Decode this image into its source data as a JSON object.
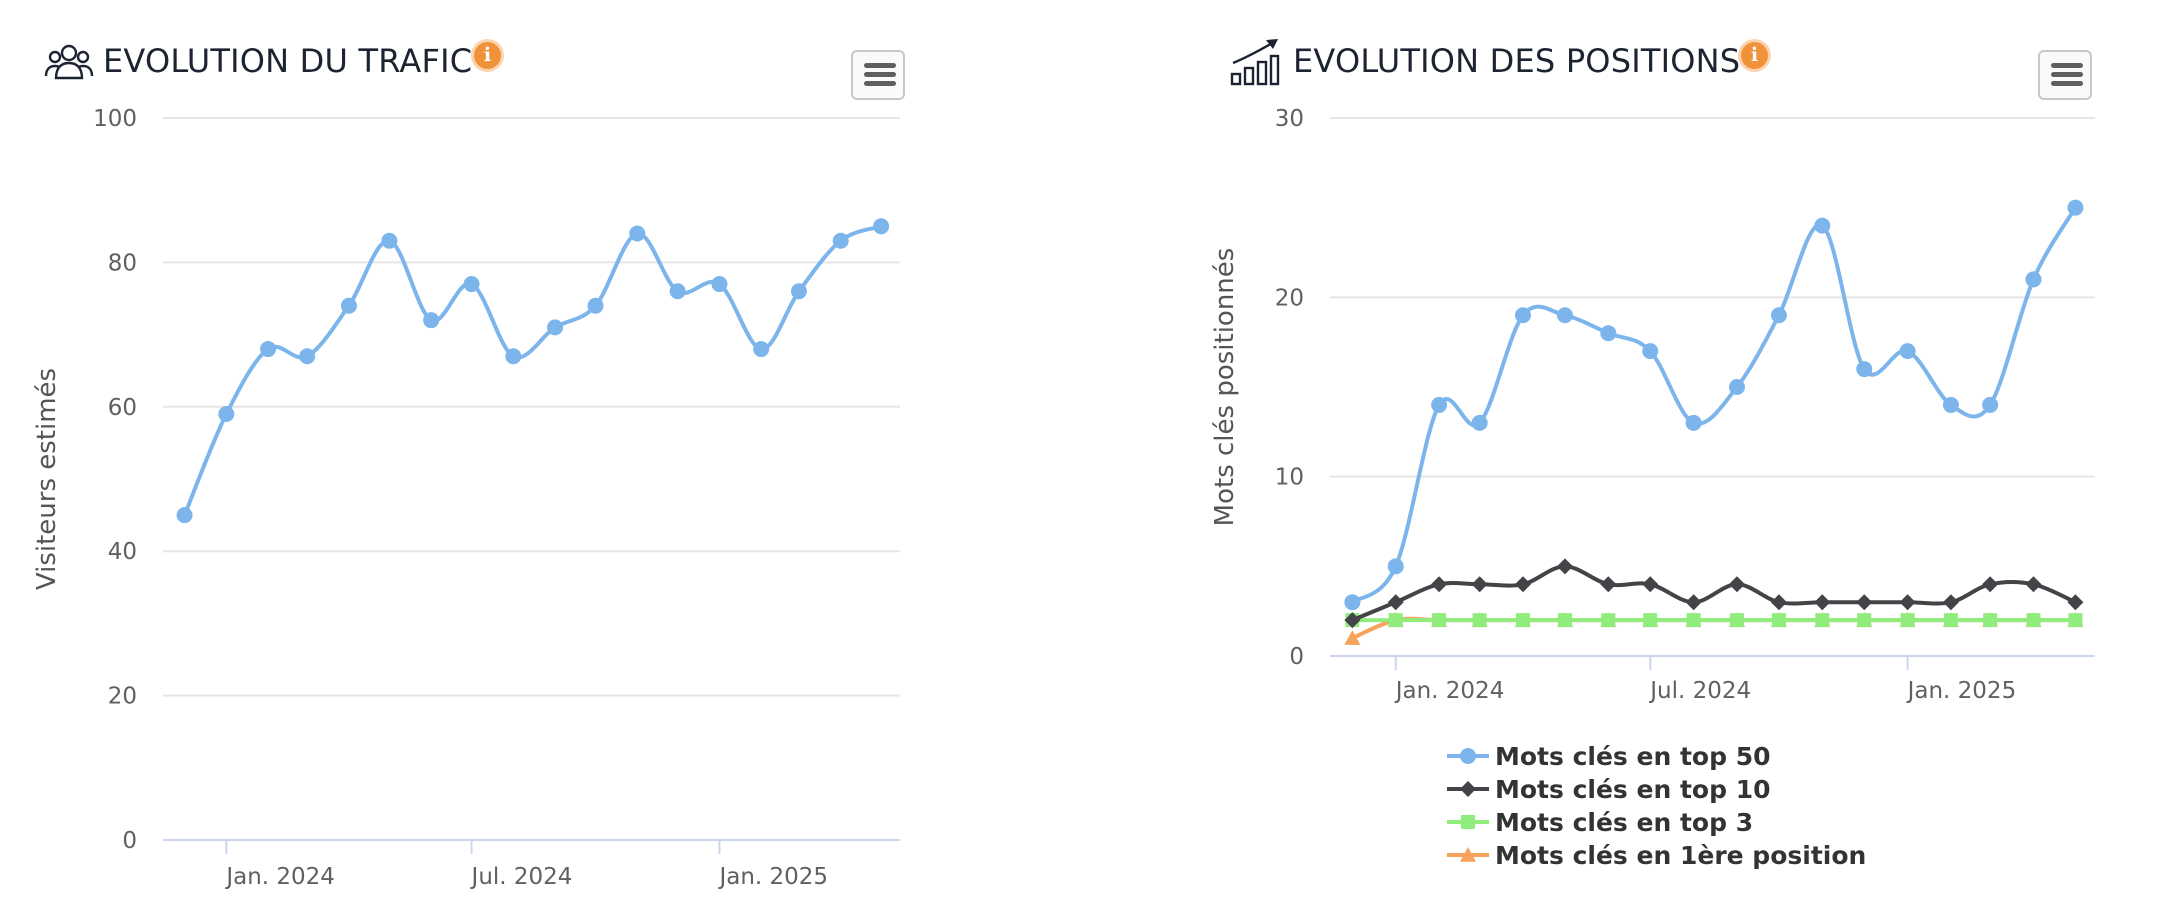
{
  "traffic": {
    "title": "EVOLUTION DU TRAFIC",
    "info_label": "i",
    "menu_icon": "hamburger-menu-icon",
    "title_icon": "users-group-icon"
  },
  "positions": {
    "title": "EVOLUTION DES POSITIONS",
    "info_label": "i",
    "menu_icon": "hamburger-menu-icon",
    "title_icon": "bar-chart-up-arrow-icon"
  },
  "chart_data": [
    {
      "type": "line",
      "title": "EVOLUTION DU TRAFIC",
      "xlabel": "",
      "ylabel": "Visiteurs estimés",
      "ylim": [
        0,
        100
      ],
      "yticks": [
        0,
        20,
        40,
        60,
        80,
        100
      ],
      "xlim": [
        "2023-11-15",
        "2025-05-15"
      ],
      "x_ticks": [
        {
          "date": "2024-01-01",
          "label": "Jan. 2024"
        },
        {
          "date": "2024-07-01",
          "label": "Jul. 2024"
        },
        {
          "date": "2025-01-01",
          "label": "Jan. 2025"
        }
      ],
      "x": [
        "2023-12-01",
        "2024-01-01",
        "2024-02-01",
        "2024-03-01",
        "2024-04-01",
        "2024-05-01",
        "2024-06-01",
        "2024-07-01",
        "2024-08-01",
        "2024-09-01",
        "2024-10-01",
        "2024-11-01",
        "2024-12-01",
        "2025-01-01",
        "2025-02-01",
        "2025-03-01",
        "2025-04-01",
        "2025-05-01"
      ],
      "grid": true,
      "series": [
        {
          "values": [
            45,
            59,
            68,
            67,
            74,
            83,
            72,
            77,
            67,
            71,
            74,
            84,
            76,
            77,
            68,
            76,
            83,
            85
          ],
          "color": "#7cb5ec",
          "marker": "circle"
        }
      ]
    },
    {
      "type": "line",
      "title": "EVOLUTION DES POSITIONS",
      "xlabel": "",
      "ylabel": "Mots clés positionnés",
      "ylim": [
        0,
        30
      ],
      "yticks": [
        0,
        10,
        20,
        30
      ],
      "xlim": [
        "2023-11-15",
        "2025-05-15"
      ],
      "x_ticks": [
        {
          "date": "2024-01-01",
          "label": "Jan. 2024"
        },
        {
          "date": "2024-07-01",
          "label": "Jul. 2024"
        },
        {
          "date": "2025-01-01",
          "label": "Jan. 2025"
        }
      ],
      "x": [
        "2023-12-01",
        "2024-01-01",
        "2024-02-01",
        "2024-03-01",
        "2024-04-01",
        "2024-05-01",
        "2024-06-01",
        "2024-07-01",
        "2024-08-01",
        "2024-09-01",
        "2024-10-01",
        "2024-11-01",
        "2024-12-01",
        "2025-01-01",
        "2025-02-01",
        "2025-03-01",
        "2025-04-01",
        "2025-05-01"
      ],
      "grid": true,
      "legend_position": "bottom",
      "series": [
        {
          "name": "Mots clés en top 50",
          "values": [
            3,
            5,
            14,
            13,
            19,
            19,
            18,
            17,
            13,
            15,
            19,
            24,
            16,
            17,
            14,
            14,
            21,
            25
          ],
          "color": "#7cb5ec",
          "marker": "circle"
        },
        {
          "name": "Mots clés en top 10",
          "values": [
            2,
            3,
            4,
            4,
            4,
            5,
            4,
            4,
            3,
            4,
            3,
            3,
            3,
            3,
            3,
            4,
            4,
            3
          ],
          "color": "#434348",
          "marker": "diamond"
        },
        {
          "name": "Mots clés en top 3",
          "values": [
            2,
            2,
            2,
            2,
            2,
            2,
            2,
            2,
            2,
            2,
            2,
            2,
            2,
            2,
            2,
            2,
            2,
            2
          ],
          "color": "#90ed7d",
          "marker": "square"
        },
        {
          "name": "Mots clés en 1ère position",
          "values": [
            1,
            2,
            2,
            2,
            2,
            2,
            2,
            2,
            2,
            2,
            2,
            2,
            2,
            2,
            2,
            2,
            2,
            2
          ],
          "color": "#f7a35c",
          "marker": "triangle"
        }
      ]
    }
  ]
}
